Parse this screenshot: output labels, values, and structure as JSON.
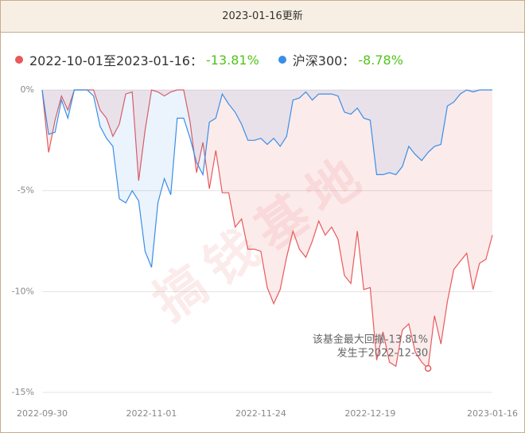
{
  "chart_data": {
    "type": "line",
    "header": "2023-01-16更新",
    "watermark": "搞钱基地",
    "categories": [
      "2022-09-30",
      null,
      null,
      null,
      null,
      null,
      null,
      null,
      null,
      null,
      null,
      null,
      null,
      null,
      null,
      null,
      null,
      "2022-11-01",
      null,
      null,
      null,
      null,
      null,
      null,
      null,
      null,
      null,
      null,
      null,
      null,
      null,
      null,
      null,
      null,
      "2022-11-24",
      null,
      null,
      null,
      null,
      null,
      null,
      null,
      null,
      null,
      null,
      null,
      null,
      null,
      null,
      null,
      null,
      "2022-12-19",
      null,
      null,
      null,
      null,
      null,
      null,
      null,
      null,
      null,
      null,
      null,
      null,
      null,
      null,
      null,
      null,
      null,
      null,
      "2023-01-16"
    ],
    "series": [
      {
        "name": "2022-10-01至2023-01-16：",
        "summary": "-13.81%",
        "color": "#e8595c",
        "values": [
          0,
          -3.1,
          -1.5,
          -0.3,
          -1.0,
          0,
          0,
          0,
          0,
          -1.0,
          -1.4,
          -2.3,
          -1.7,
          -0.2,
          -0.1,
          -4.5,
          -2.0,
          0,
          -0.1,
          -0.3,
          -0.1,
          0,
          0,
          -1.6,
          -4.1,
          -2.6,
          -4.9,
          -3.0,
          -5.1,
          -5.1,
          -6.8,
          -6.4,
          -7.9,
          -7.9,
          -8.0,
          -9.8,
          -10.6,
          -9.9,
          -8.3,
          -7.0,
          -7.9,
          -8.3,
          -7.5,
          -6.5,
          -7.2,
          -6.8,
          -7.4,
          -9.2,
          -9.6,
          -7.0,
          -9.9,
          -9.8,
          -13.4,
          -12.0,
          -13.5,
          -13.7,
          -11.9,
          -11.6,
          -13.0,
          -13.5,
          -13.81,
          -11.2,
          -12.6,
          -10.5,
          -8.9,
          -8.5,
          -8.1,
          -9.9,
          -8.6,
          -8.4,
          -7.2
        ]
      },
      {
        "name": "沪深300：",
        "summary": "-8.78%",
        "color": "#3a8ee6",
        "values": [
          0,
          -2.2,
          -2.1,
          -0.5,
          -1.4,
          0,
          0,
          0,
          -0.3,
          -1.8,
          -2.4,
          -2.8,
          -5.4,
          -5.6,
          -5.0,
          -5.5,
          -8.0,
          -8.8,
          -5.6,
          -4.4,
          -5.2,
          -1.4,
          -1.4,
          -2.4,
          -3.6,
          -4.2,
          -1.6,
          -1.4,
          -0.2,
          -0.7,
          -1.1,
          -1.7,
          -2.5,
          -2.5,
          -2.4,
          -2.7,
          -2.4,
          -2.8,
          -2.3,
          -0.5,
          -0.4,
          -0.1,
          -0.5,
          -0.2,
          -0.2,
          -0.2,
          -0.3,
          -1.1,
          -1.2,
          -0.9,
          -1.4,
          -1.5,
          -4.2,
          -4.2,
          -4.1,
          -4.2,
          -3.8,
          -2.8,
          -3.2,
          -3.5,
          -3.1,
          -2.8,
          -2.7,
          -0.8,
          -0.6,
          -0.2,
          0,
          -0.1,
          0,
          0,
          0
        ]
      }
    ],
    "annotations": [
      "该基金最大回撤-13.81%",
      "发生于2022-12-30"
    ],
    "ylim": [
      -15,
      0
    ],
    "yticks": [
      {
        "value": 0,
        "label": "0%"
      },
      {
        "value": -5,
        "label": "-5%"
      },
      {
        "value": -10,
        "label": "-10%"
      },
      {
        "value": -15,
        "label": "-15%"
      }
    ],
    "grid": true
  }
}
